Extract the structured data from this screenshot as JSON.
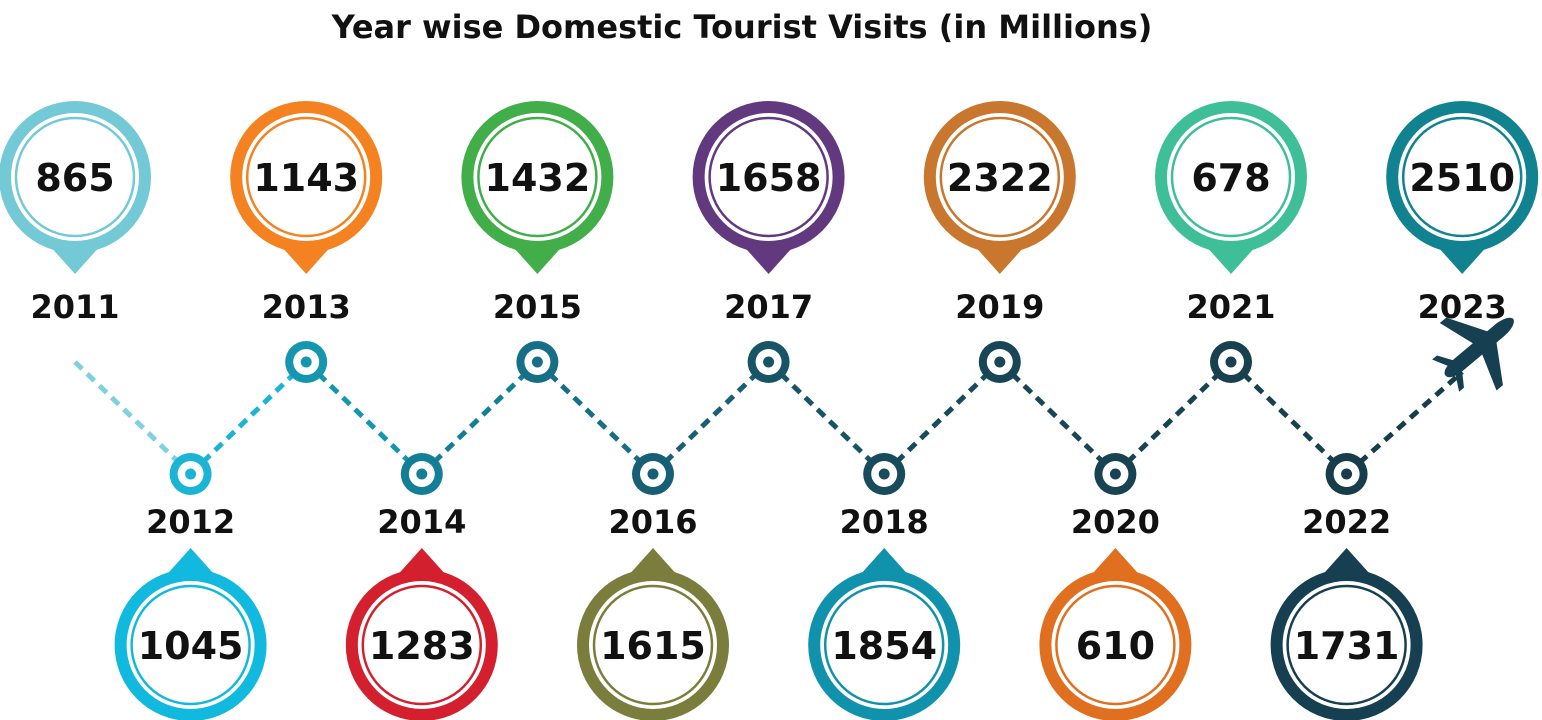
{
  "chart_data": {
    "type": "timeline",
    "title": "Year wise Domestic Tourist Visits (in Millions)",
    "categories": [
      "2011",
      "2012",
      "2013",
      "2014",
      "2015",
      "2016",
      "2017",
      "2018",
      "2019",
      "2020",
      "2021",
      "2022",
      "2023"
    ],
    "series": [
      {
        "values": [
          865,
          1045,
          1143,
          1283,
          1432,
          1615,
          1658,
          1854,
          2322,
          610,
          678,
          1731,
          2510
        ]
      }
    ],
    "colors": [
      "#74c9d6",
      "#12b9de",
      "#f58220",
      "#d4202e",
      "#41ae49",
      "#7a7d3b",
      "#62387f",
      "#1092ad",
      "#c9772f",
      "#e07020",
      "#3fbf98",
      "#163f52",
      "#118390"
    ],
    "line_colors": [
      "#7fd1dd",
      "#1ab4d6",
      "#1497ae",
      "#137f97",
      "#166f86",
      "#165f75",
      "#175466",
      "#184b5c",
      "#184656",
      "#184352",
      "#18404e",
      "#173d4a"
    ],
    "icons": {
      "end_marker": "airplane-icon",
      "node": "target-icon"
    }
  }
}
